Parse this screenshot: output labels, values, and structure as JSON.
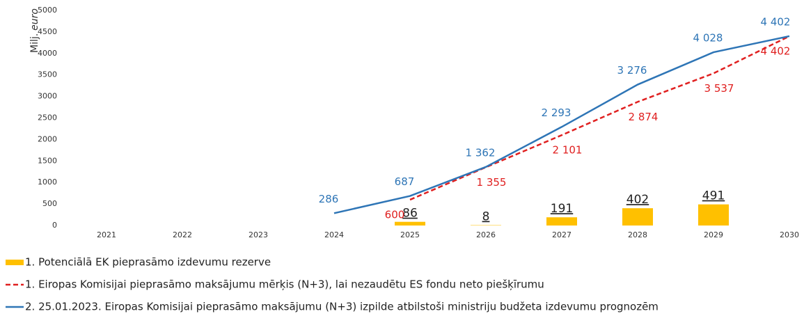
{
  "chart_data": {
    "type": "combo",
    "y_label_parts": [
      "Milj.",
      "euro"
    ],
    "categories": [
      "2021",
      "2022",
      "2023",
      "2024",
      "2025",
      "2026",
      "2027",
      "2028",
      "2029",
      "2030"
    ],
    "ylim": [
      0,
      5000
    ],
    "yticks": [
      0,
      500,
      1000,
      1500,
      2000,
      2500,
      3000,
      3500,
      4000,
      4500,
      5000
    ],
    "grid": false,
    "series": [
      {
        "name": "1. Potenciālā EK pieprasāmo izdevumu rezerve",
        "type": "bar",
        "color": "#ffc000",
        "values": [
          null,
          null,
          null,
          null,
          86,
          8,
          191,
          402,
          491,
          null
        ]
      },
      {
        "name": "1. Eiropas Komisijai pieprasāmo maksājumu mērķis (N+3), lai nezaudētu ES fondu neto piešķīrumu",
        "type": "line",
        "dashed": true,
        "color": "#e02020",
        "values": [
          null,
          null,
          null,
          null,
          600,
          1355,
          2101,
          2874,
          3537,
          4402
        ],
        "value_labels": [
          null,
          null,
          null,
          null,
          "600",
          "1 355",
          "2 101",
          "2 874",
          "3 537",
          "4 402"
        ]
      },
      {
        "name": "2. 25.01.2023. Eiropas Komisijai pieprasāmo maksājumu (N+3) izpilde atbilstoši ministriju budžeta izdevumu prognozēm",
        "type": "line",
        "dashed": false,
        "color": "#2e75b6",
        "values": [
          null,
          null,
          null,
          286,
          687,
          1362,
          2293,
          3276,
          4028,
          4402
        ],
        "value_labels": [
          null,
          null,
          null,
          "286",
          "687",
          "1 362",
          "2 293",
          "3 276",
          "4 028",
          "4 402"
        ]
      }
    ]
  }
}
